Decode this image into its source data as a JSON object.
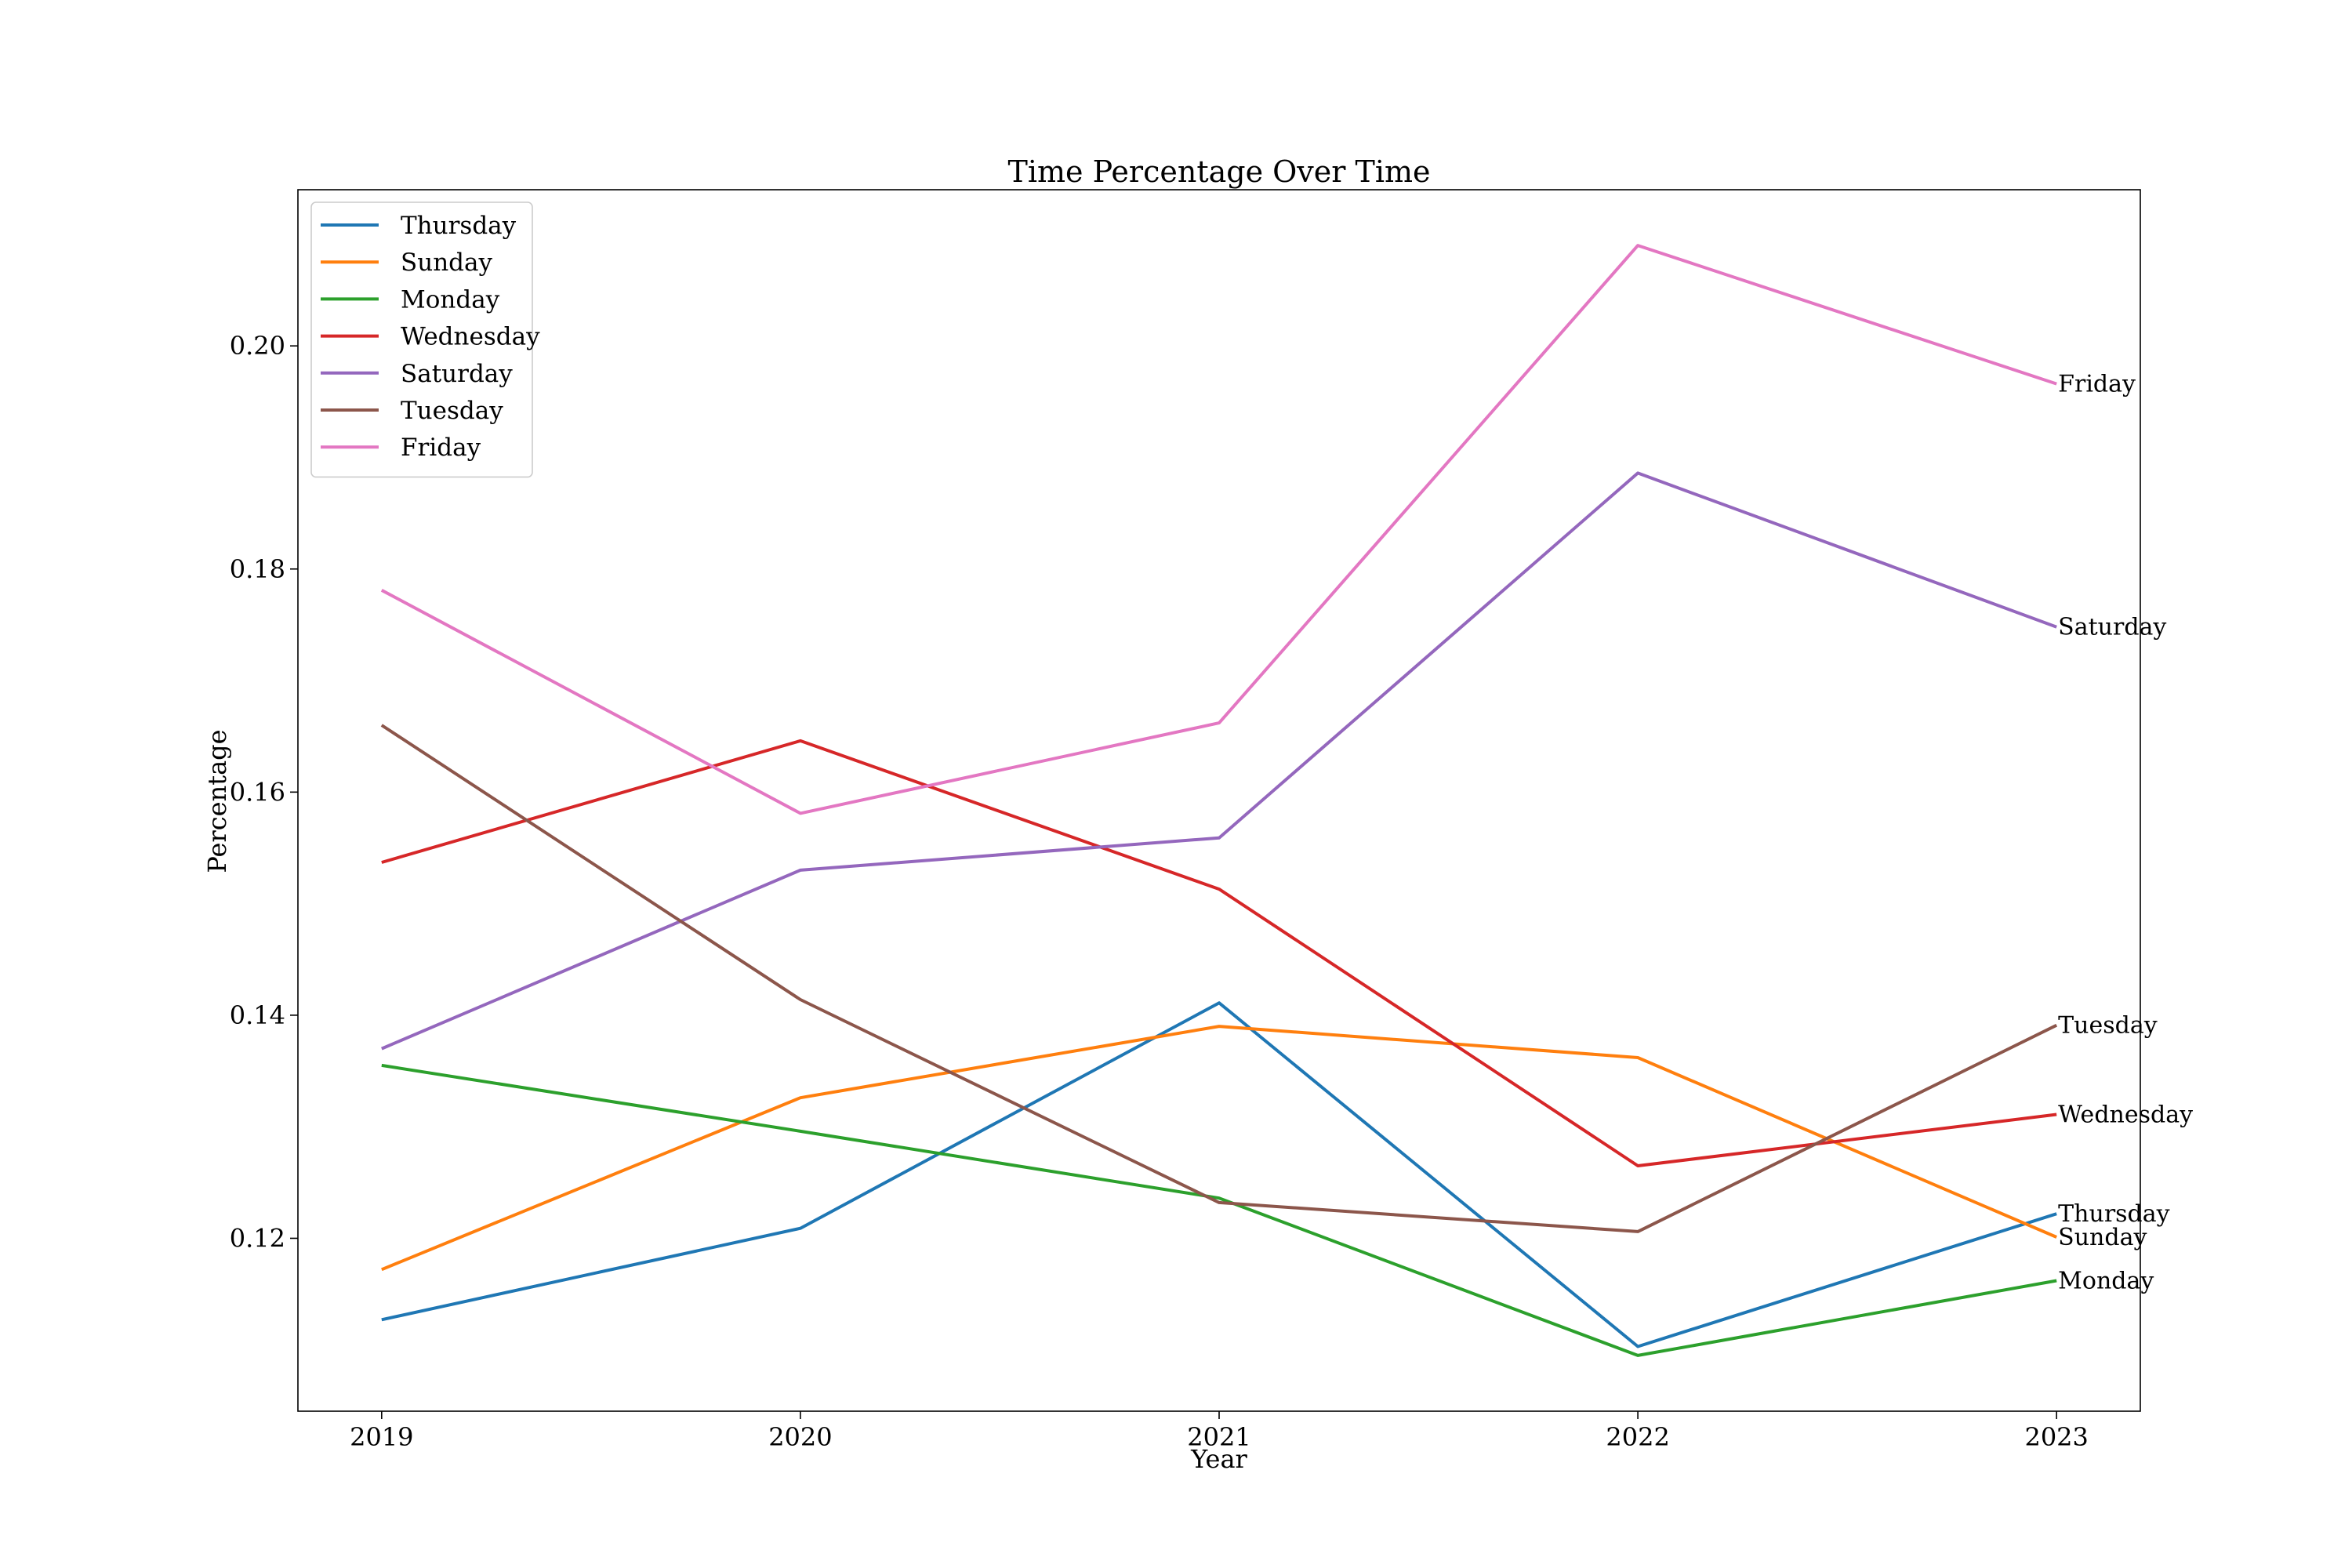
{
  "chart_data": {
    "type": "line",
    "title": "Time Percentage Over Time",
    "xlabel": "Year",
    "ylabel": "Percentage",
    "x": [
      "2019",
      "2020",
      "2021",
      "2022",
      "2023"
    ],
    "xlim": [
      2018.8,
      2023.2
    ],
    "ylim": [
      0.1045,
      0.214
    ],
    "yticks": [
      "0.12",
      "0.14",
      "0.16",
      "0.18",
      "0.20"
    ],
    "grid": false,
    "legend_position": "top-left",
    "series": [
      {
        "name": "Thursday",
        "color": "#1f77b4",
        "values": [
          0.1127,
          0.1209,
          0.1411,
          0.1103,
          0.1222
        ]
      },
      {
        "name": "Sunday",
        "color": "#ff7f0e",
        "values": [
          0.1172,
          0.1326,
          0.139,
          0.1362,
          0.1201
        ]
      },
      {
        "name": "Monday",
        "color": "#2ca02c",
        "values": [
          0.1355,
          0.1296,
          0.1236,
          0.1095,
          0.1162
        ]
      },
      {
        "name": "Wednesday",
        "color": "#d62728",
        "values": [
          0.1537,
          0.1646,
          0.1513,
          0.1265,
          0.1311
        ]
      },
      {
        "name": "Saturday",
        "color": "#9467bd",
        "values": [
          0.137,
          0.153,
          0.1559,
          0.1886,
          0.1748
        ]
      },
      {
        "name": "Tuesday",
        "color": "#8c564b",
        "values": [
          0.166,
          0.1414,
          0.1232,
          0.1206,
          0.1391
        ]
      },
      {
        "name": "Friday",
        "color": "#e377c2",
        "values": [
          0.1781,
          0.1581,
          0.1662,
          0.209,
          0.1966
        ]
      }
    ]
  }
}
